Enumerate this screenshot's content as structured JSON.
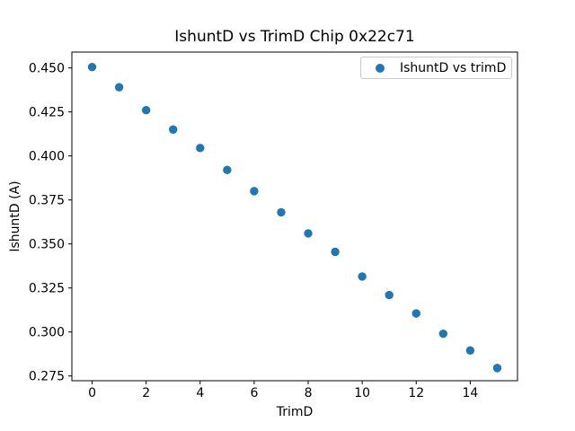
{
  "figure": {
    "background": "#ffffff",
    "text_color": "#000000",
    "spine_color": "#000000",
    "legend_border_color": "#cccccc"
  },
  "chart_data": {
    "type": "scatter",
    "title": "IshuntD vs TrimD Chip 0x22c71",
    "xlabel": "TrimD",
    "ylabel": "IshuntD (A)",
    "legend": {
      "label": "IshuntD vs trimD",
      "position": "upper right",
      "marker": "circle-icon"
    },
    "marker_color": "#1f77b4",
    "grid": false,
    "x": [
      0,
      1,
      2,
      3,
      4,
      5,
      6,
      7,
      8,
      9,
      10,
      11,
      12,
      13,
      14,
      15
    ],
    "y": [
      0.4505,
      0.439,
      0.426,
      0.415,
      0.4045,
      0.392,
      0.38,
      0.368,
      0.356,
      0.3455,
      0.3315,
      0.321,
      0.3105,
      0.299,
      0.2895,
      0.2795
    ],
    "xlim": [
      -0.75,
      15.75
    ],
    "ylim": [
      0.2723,
      0.459
    ],
    "x_ticks": [
      0,
      2,
      4,
      6,
      8,
      10,
      12,
      14
    ],
    "y_ticks": [
      0.275,
      0.3,
      0.325,
      0.35,
      0.375,
      0.4,
      0.425,
      0.45
    ],
    "y_tick_decimals": 3
  }
}
